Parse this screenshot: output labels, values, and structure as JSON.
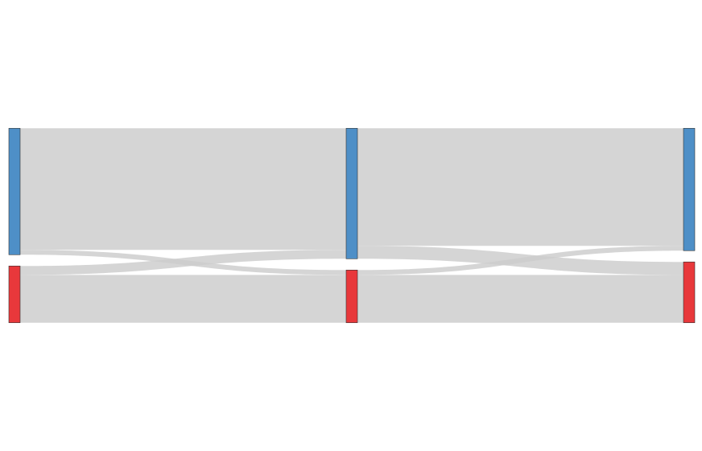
{
  "chart_data": {
    "type": "sankey",
    "title": "",
    "stages": [
      {
        "nodes": [
          {
            "id": "s0_blue",
            "color": "#4e8fc7"
          },
          {
            "id": "s0_red",
            "color": "#e8383b"
          }
        ]
      },
      {
        "nodes": [
          {
            "id": "s1_blue",
            "color": "#4e8fc7"
          },
          {
            "id": "s1_red",
            "color": "#e8383b"
          }
        ]
      },
      {
        "nodes": [
          {
            "id": "s2_blue",
            "color": "#4e8fc7"
          },
          {
            "id": "s2_red",
            "color": "#e8383b"
          }
        ]
      }
    ],
    "links": [
      {
        "source": "s0_blue",
        "target": "s1_blue",
        "value": 150
      },
      {
        "source": "s0_blue",
        "target": "s1_red",
        "value": 6
      },
      {
        "source": "s0_red",
        "target": "s1_blue",
        "value": 11
      },
      {
        "source": "s0_red",
        "target": "s1_red",
        "value": 59
      },
      {
        "source": "s1_blue",
        "target": "s2_blue",
        "value": 145
      },
      {
        "source": "s1_blue",
        "target": "s2_red",
        "value": 16
      },
      {
        "source": "s1_red",
        "target": "s2_blue",
        "value": 6
      },
      {
        "source": "s1_red",
        "target": "s2_red",
        "value": 59
      }
    ],
    "link_color": "#cccccc",
    "node_stroke": "#333333"
  }
}
